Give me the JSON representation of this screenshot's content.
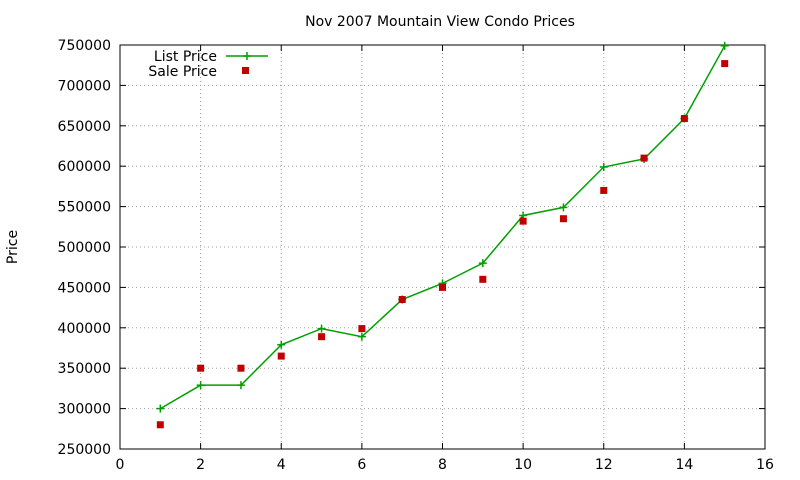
{
  "chart_data": {
    "type": "line",
    "title": "Nov 2007 Mountain View Condo Prices",
    "xlabel": "",
    "ylabel": "Price",
    "xlim": [
      0,
      16
    ],
    "ylim": [
      250000,
      750000
    ],
    "xticks": [
      0,
      2,
      4,
      6,
      8,
      10,
      12,
      14,
      16
    ],
    "yticks": [
      250000,
      300000,
      350000,
      400000,
      450000,
      500000,
      550000,
      600000,
      650000,
      700000,
      750000
    ],
    "grid": true,
    "legend_position": "top-left",
    "series": [
      {
        "name": "List Price",
        "style": "line-with-plus-markers",
        "color": "#00a000",
        "x": [
          1,
          2,
          3,
          4,
          5,
          6,
          7,
          8,
          9,
          10,
          11,
          12,
          13,
          14,
          15
        ],
        "y": [
          300000,
          329000,
          329000,
          379000,
          399000,
          389000,
          435000,
          455000,
          480000,
          539000,
          549000,
          599000,
          609000,
          659000,
          749000
        ]
      },
      {
        "name": "Sale Price",
        "style": "square-points",
        "color": "#c00000",
        "x": [
          1,
          2,
          3,
          4,
          5,
          6,
          7,
          8,
          9,
          10,
          11,
          12,
          13,
          14,
          15
        ],
        "y": [
          280000,
          350000,
          350000,
          365000,
          389000,
          399000,
          435000,
          450000,
          460000,
          532000,
          535000,
          570000,
          610000,
          659000,
          727000
        ]
      }
    ]
  }
}
